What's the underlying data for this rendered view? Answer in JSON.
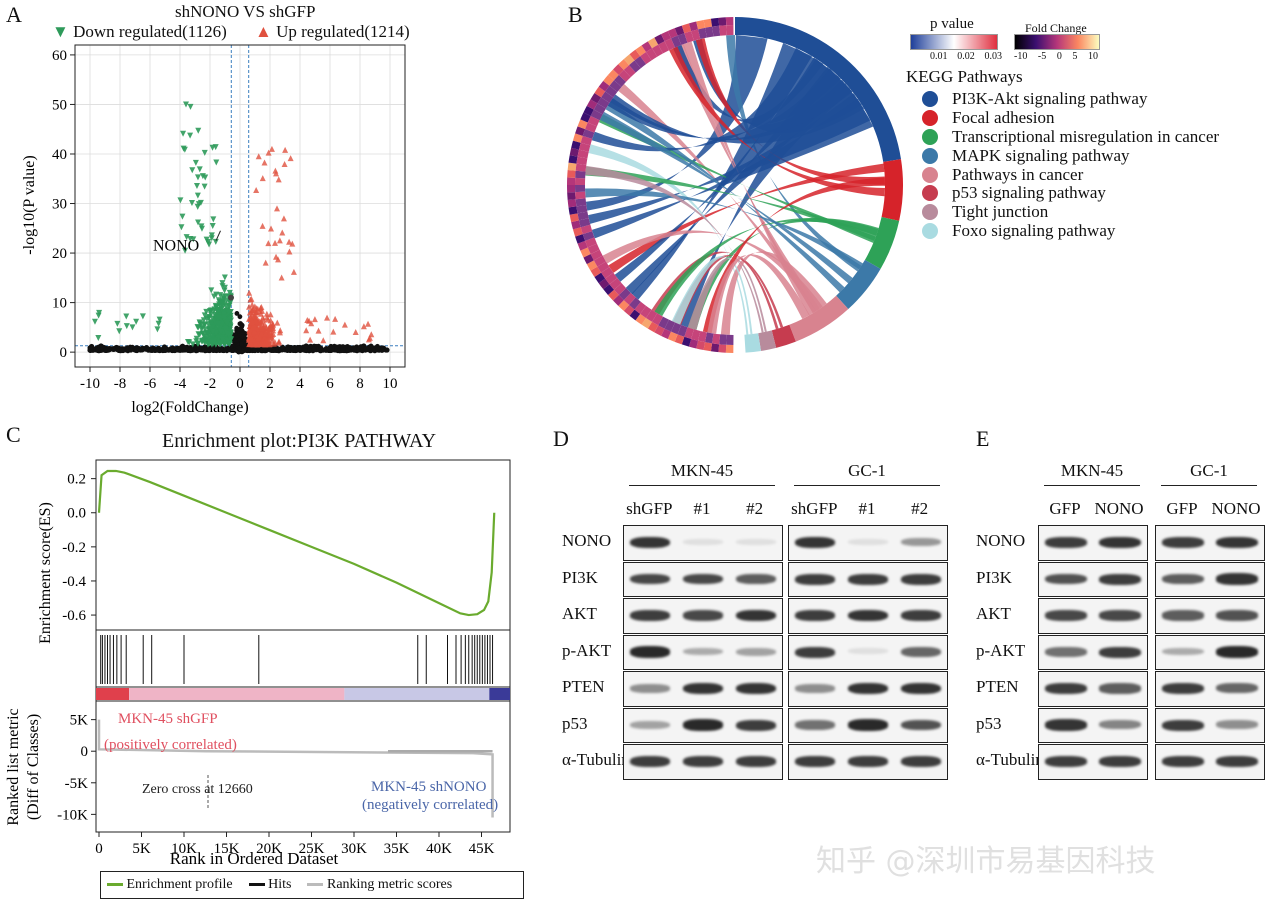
{
  "panels": {
    "a": "A",
    "b": "B",
    "c": "C",
    "d": "D",
    "e": "E"
  },
  "volcano": {
    "title": "shNONO VS shGFP",
    "down_legend": "Down regulated(1126)",
    "up_legend": "Up regulated(1214)",
    "xlabel": "log2(FoldChange)",
    "ylabel": "-log10(P value)",
    "annotation": "NONO",
    "x_ticks": [
      "-10",
      "-8",
      "-6",
      "-4",
      "-2",
      "0",
      "2",
      "4",
      "6",
      "8",
      "10"
    ],
    "y_ticks": [
      "0",
      "10",
      "20",
      "30",
      "40",
      "50",
      "60"
    ],
    "xlim": [
      -11,
      11
    ],
    "ylim": [
      -3,
      62
    ],
    "fc_cutoff": 0.58,
    "p_cutoff": 1.3,
    "nono_point": [
      -0.6,
      11
    ],
    "colors": {
      "down": "#2e9a5a",
      "up": "#e0513f",
      "ns": "#111111",
      "grid": "#dcdcdc"
    }
  },
  "chord": {
    "pvalue_label": "p value",
    "pvalue_ticks": [
      "0.01",
      "0.02",
      "0.03"
    ],
    "fc_label": "Fold Change",
    "fc_ticks": [
      "-10",
      "-5",
      "0",
      "5",
      "10"
    ],
    "legend_title": "KEGG Pathways",
    "pathways": [
      {
        "name": "PI3K-Akt signaling pathway",
        "color": "#1f4e96"
      },
      {
        "name": "Focal adhesion",
        "color": "#d6232a"
      },
      {
        "name": "Transcriptional misregulation in cancer",
        "color": "#2ea257"
      },
      {
        "name": "MAPK signaling pathway",
        "color": "#3c79a8"
      },
      {
        "name": "Pathways in cancer",
        "color": "#d8838f"
      },
      {
        "name": "p53 signaling pathway",
        "color": "#c63c4f"
      },
      {
        "name": "Tight junction",
        "color": "#b88b9c"
      },
      {
        "name": "Foxo signaling pathway",
        "color": "#a9dbe1"
      }
    ]
  },
  "chart_data": [
    {
      "type": "scatter",
      "title": "shNONO VS shGFP",
      "xlabel": "log2(FoldChange)",
      "ylabel": "-log10(P value)",
      "xlim": [
        -11,
        11
      ],
      "ylim": [
        0,
        60
      ],
      "series": [
        {
          "name": "Down regulated(1126)",
          "count": 1126
        },
        {
          "name": "Up regulated(1214)",
          "count": 1214
        }
      ],
      "annotations": [
        {
          "label": "NONO",
          "x": -0.6,
          "y": 11
        }
      ]
    },
    {
      "type": "line",
      "title": "Enrichment plot:PI3K PATHWAY",
      "xlabel": "Rank in Ordered Dataset",
      "ylabel": "Enrichment score(ES)",
      "xlim": [
        0,
        48000
      ],
      "ylim": [
        -0.67,
        0.28
      ],
      "x": [
        0,
        300,
        1000,
        2000,
        3000,
        6000,
        10000,
        15000,
        20000,
        25000,
        30000,
        35000,
        40000,
        42500,
        43500,
        44500,
        45300,
        45800,
        46200,
        46500
      ],
      "y": [
        0.0,
        0.22,
        0.245,
        0.245,
        0.235,
        0.18,
        0.1,
        0.0,
        -0.1,
        -0.2,
        -0.3,
        -0.41,
        -0.53,
        -0.59,
        -0.6,
        -0.595,
        -0.57,
        -0.52,
        -0.35,
        0.0
      ],
      "hits_x": [
        200,
        400,
        700,
        1000,
        1300,
        1700,
        2100,
        2600,
        3200,
        5200,
        6200,
        10000,
        18800,
        37500,
        38500,
        41000,
        42000,
        42600,
        43100,
        43500,
        43900,
        44200,
        44500,
        44800,
        45100,
        45400,
        45700,
        46000,
        46300
      ],
      "zero_cross": 12660
    }
  ],
  "gsea": {
    "title": "Enrichment plot:PI3K PATHWAY",
    "es_label": "Enrichment score(ES)",
    "es_ticks": [
      "0.2",
      "0.0",
      "-0.2",
      "-0.4",
      "-0.6"
    ],
    "metric_label": "Ranked list metric\n(Diff of Classes)",
    "metric_ticks": [
      "5K",
      "0",
      "-5K",
      "-10K"
    ],
    "x_ticks": [
      "0",
      "5K",
      "10K",
      "15K",
      "20K",
      "25K",
      "30K",
      "35K",
      "40K",
      "45K"
    ],
    "xlabel": "Rank in Ordered Dataset",
    "pos_label": "MKN-45 shGFP",
    "pos_sub": "(positively correlated)",
    "neg_label": "MKN-45 shNONO",
    "neg_sub": "(negatively correlated)",
    "zero_cross": "Zero cross at 12660",
    "legend": [
      "Enrichment profile",
      "Hits",
      "Ranking metric scores"
    ],
    "colors": {
      "curve": "#6aab2e",
      "pos": "#e05060",
      "neg": "#4a66a8",
      "rank": "#bbbbbb"
    }
  },
  "blot_d": {
    "groups": [
      "MKN-45",
      "GC-1"
    ],
    "lanes": [
      "shGFP",
      "#1",
      "#2"
    ],
    "rows": [
      {
        "label": "NONO",
        "i": [
          [
            0.9,
            0.05,
            0.05
          ],
          [
            0.9,
            0.05,
            0.4
          ]
        ]
      },
      {
        "label": "PI3K",
        "i": [
          [
            0.8,
            0.8,
            0.7
          ],
          [
            0.85,
            0.85,
            0.85
          ]
        ]
      },
      {
        "label": "AKT",
        "i": [
          [
            0.85,
            0.8,
            0.9
          ],
          [
            0.85,
            0.9,
            0.85
          ]
        ]
      },
      {
        "label": "p-AKT",
        "i": [
          [
            0.95,
            0.3,
            0.35
          ],
          [
            0.85,
            0.05,
            0.65
          ]
        ]
      },
      {
        "label": "PTEN",
        "i": [
          [
            0.45,
            0.9,
            0.9
          ],
          [
            0.45,
            0.9,
            0.9
          ]
        ]
      },
      {
        "label": "p53",
        "i": [
          [
            0.35,
            0.95,
            0.85
          ],
          [
            0.6,
            0.95,
            0.75
          ]
        ]
      },
      {
        "label": "α-Tubulin",
        "i": [
          [
            0.85,
            0.85,
            0.85
          ],
          [
            0.85,
            0.85,
            0.85
          ]
        ]
      }
    ]
  },
  "blot_e": {
    "groups": [
      "MKN-45",
      "GC-1"
    ],
    "lanes": [
      "GFP",
      "NONO"
    ],
    "rows": [
      {
        "label": "NONO",
        "i": [
          [
            0.85,
            0.9
          ],
          [
            0.85,
            0.9
          ]
        ]
      },
      {
        "label": "PI3K",
        "i": [
          [
            0.75,
            0.85
          ],
          [
            0.7,
            0.9
          ]
        ]
      },
      {
        "label": "AKT",
        "i": [
          [
            0.8,
            0.8
          ],
          [
            0.7,
            0.75
          ]
        ]
      },
      {
        "label": "p-AKT",
        "i": [
          [
            0.6,
            0.85
          ],
          [
            0.3,
            0.95
          ]
        ]
      },
      {
        "label": "PTEN",
        "i": [
          [
            0.85,
            0.7
          ],
          [
            0.85,
            0.65
          ]
        ]
      },
      {
        "label": "p53",
        "i": [
          [
            0.9,
            0.5
          ],
          [
            0.85,
            0.45
          ]
        ]
      },
      {
        "label": "α-Tubulin",
        "i": [
          [
            0.85,
            0.85
          ],
          [
            0.85,
            0.85
          ]
        ]
      }
    ]
  },
  "watermark": "知乎 @深圳市易基因科技"
}
